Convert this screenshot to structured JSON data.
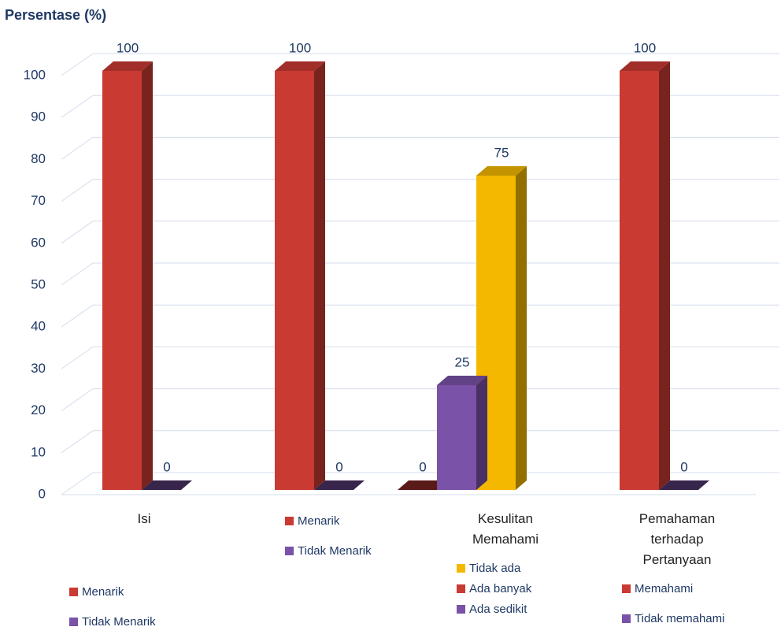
{
  "chart_data": {
    "type": "bar3d",
    "ylabel": "Persentase (%)",
    "ylim": [
      0,
      100
    ],
    "yticks": [
      0,
      10,
      20,
      30,
      40,
      50,
      60,
      70,
      80,
      90,
      100
    ],
    "grid": true,
    "categories": [
      "Isi",
      null,
      "Kesulitan Memahami",
      "Pemahaman terhadap Pertanyaan"
    ],
    "groups": [
      {
        "series": [
          {
            "name": "Menarik",
            "color": "#c93a33",
            "value": 100
          },
          {
            "name": "Tidak Menarik",
            "color": "#7a52a8",
            "value": 0
          }
        ]
      },
      {
        "series": [
          {
            "name": "Menarik",
            "color": "#c93a33",
            "value": 100
          },
          {
            "name": "Tidak Menarik",
            "color": "#7a52a8",
            "value": 0
          }
        ]
      },
      {
        "series": [
          {
            "name": "Tidak ada",
            "color": "#f5b800",
            "value": 75
          },
          {
            "name": "Ada banyak",
            "color": "#c93a33",
            "value": 0
          },
          {
            "name": "Ada sedikit",
            "color": "#7a52a8",
            "value": 25
          }
        ]
      },
      {
        "series": [
          {
            "name": "Memahami",
            "color": "#c93a33",
            "value": 100
          },
          {
            "name": "Tidak memahami",
            "color": "#7a52a8",
            "value": 0
          }
        ]
      }
    ]
  }
}
